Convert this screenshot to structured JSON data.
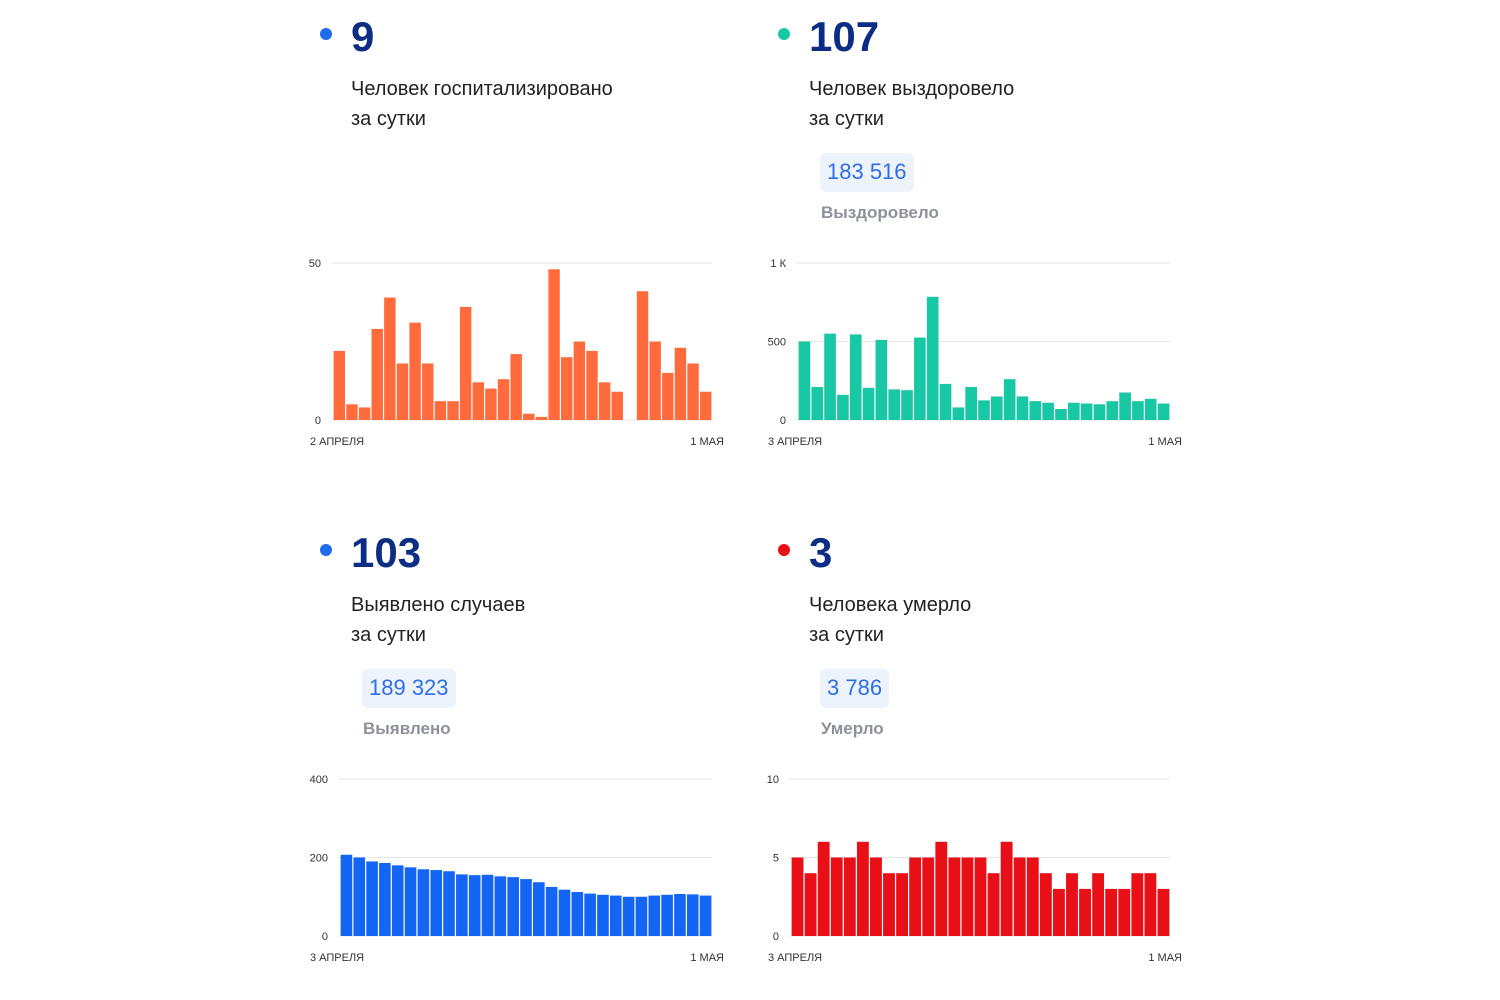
{
  "colors": {
    "number": "#0b2d84",
    "badge_text": "#2f6ee6",
    "badge_bg": "#edf3fb",
    "label_gray": "#8c919b",
    "grid": "#e6e6e6"
  },
  "panels": [
    {
      "id": "hospitalized",
      "dot_color": "#1e6cf2",
      "number": "9",
      "caption_line1": "Человек госпитализировано",
      "caption_line2": "за сутки",
      "total": null,
      "total_label": null,
      "chart_data": {
        "type": "bar",
        "color": "#ff6b3d",
        "x_start_label": "2 АПРЕЛЯ",
        "x_end_label": "1 МАЯ",
        "y_max": 50,
        "y_ticks": [
          {
            "value": 0,
            "label": "0"
          },
          {
            "value": 50,
            "label": "50"
          }
        ],
        "values": [
          22,
          5,
          4,
          29,
          39,
          18,
          31,
          18,
          6,
          6,
          36,
          12,
          10,
          13,
          21,
          2,
          1,
          48,
          20,
          25,
          22,
          12,
          9,
          0,
          41,
          25,
          15,
          23,
          18,
          9
        ]
      }
    },
    {
      "id": "recovered",
      "dot_color": "#18c7a3",
      "number": "107",
      "caption_line1": "Человек выздоровело",
      "caption_line2": "за сутки",
      "total": "183 516",
      "total_label": "Выздоровело",
      "chart_data": {
        "type": "bar",
        "color": "#18c7a3",
        "x_start_label": "3 АПРЕЛЯ",
        "x_end_label": "1 МАЯ",
        "y_max": 1000,
        "y_ticks": [
          {
            "value": 0,
            "label": "0"
          },
          {
            "value": 500,
            "label": "500"
          },
          {
            "value": 1000,
            "label": "1 К"
          }
        ],
        "values": [
          500,
          210,
          550,
          160,
          545,
          205,
          510,
          195,
          190,
          525,
          785,
          230,
          80,
          210,
          125,
          150,
          260,
          150,
          120,
          110,
          70,
          110,
          105,
          100,
          120,
          175,
          120,
          135,
          105
        ]
      }
    },
    {
      "id": "cases",
      "dot_color": "#1e6cf2",
      "number": "103",
      "caption_line1": "Выявлено случаев",
      "caption_line2": "за сутки",
      "total": "189 323",
      "total_label": "Выявлено",
      "chart_data": {
        "type": "bar",
        "color": "#1565f5",
        "x_start_label": "3 АПРЕЛЯ",
        "x_end_label": "1 МАЯ",
        "y_max": 400,
        "y_ticks": [
          {
            "value": 0,
            "label": "0"
          },
          {
            "value": 200,
            "label": "200"
          },
          {
            "value": 400,
            "label": "400"
          }
        ],
        "values": [
          207,
          200,
          190,
          186,
          180,
          175,
          170,
          168,
          165,
          157,
          155,
          156,
          152,
          150,
          145,
          137,
          125,
          118,
          112,
          108,
          105,
          103,
          100,
          100,
          103,
          105,
          107,
          106,
          103
        ]
      }
    },
    {
      "id": "deaths",
      "dot_color": "#e80f16",
      "number": "3",
      "caption_line1": "Человека умерло",
      "caption_line2": "за сутки",
      "total": "3 786",
      "total_label": "Умерло",
      "chart_data": {
        "type": "bar",
        "color": "#e80f16",
        "x_start_label": "3 АПРЕЛЯ",
        "x_end_label": "1 МАЯ",
        "y_max": 10,
        "y_ticks": [
          {
            "value": 0,
            "label": "0"
          },
          {
            "value": 5,
            "label": "5"
          },
          {
            "value": 10,
            "label": "10"
          }
        ],
        "values": [
          5,
          4,
          6,
          5,
          5,
          6,
          5,
          4,
          4,
          5,
          5,
          6,
          5,
          5,
          5,
          4,
          6,
          5,
          5,
          4,
          3,
          4,
          3,
          4,
          3,
          3,
          4,
          4,
          3
        ]
      }
    }
  ]
}
